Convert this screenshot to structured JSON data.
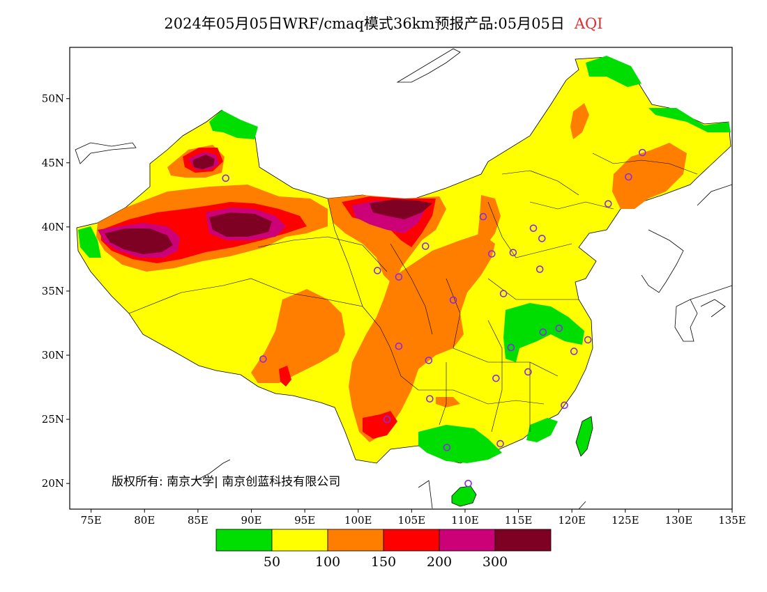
{
  "header": {
    "title_main": "2024年05月05日WRF/cmaq模式36km预报产品:05月05日",
    "title_variable": "AQI"
  },
  "map": {
    "lon_range": [
      73,
      135
    ],
    "lat_range": [
      18,
      54
    ],
    "x_ticks": [
      {
        "lon": 75,
        "label": "75E"
      },
      {
        "lon": 80,
        "label": "80E"
      },
      {
        "lon": 85,
        "label": "85E"
      },
      {
        "lon": 90,
        "label": "90E"
      },
      {
        "lon": 95,
        "label": "95E"
      },
      {
        "lon": 100,
        "label": "100E"
      },
      {
        "lon": 105,
        "label": "105E"
      },
      {
        "lon": 110,
        "label": "110E"
      },
      {
        "lon": 115,
        "label": "115E"
      },
      {
        "lon": 120,
        "label": "120E"
      },
      {
        "lon": 125,
        "label": "125E"
      },
      {
        "lon": 130,
        "label": "130E"
      },
      {
        "lon": 135,
        "label": "135E"
      }
    ],
    "y_ticks": [
      {
        "lat": 20,
        "label": "20N"
      },
      {
        "lat": 25,
        "label": "25N"
      },
      {
        "lat": 30,
        "label": "30N"
      },
      {
        "lat": 35,
        "label": "35N"
      },
      {
        "lat": 40,
        "label": "40N"
      },
      {
        "lat": 45,
        "label": "45N"
      },
      {
        "lat": 50,
        "label": "50N"
      }
    ],
    "copyright": "版权所有: 南京大学| 南京创蓝科技有限公司",
    "station_color": "#8a2be2",
    "stations": [
      [
        87.6,
        43.8
      ],
      [
        91.1,
        29.7
      ],
      [
        101.8,
        36.6
      ],
      [
        103.8,
        36.1
      ],
      [
        103.8,
        30.7
      ],
      [
        102.7,
        25.0
      ],
      [
        106.3,
        38.5
      ],
      [
        106.6,
        29.6
      ],
      [
        106.7,
        26.6
      ],
      [
        108.9,
        34.3
      ],
      [
        108.3,
        22.8
      ],
      [
        110.3,
        20.0
      ],
      [
        111.7,
        40.8
      ],
      [
        112.5,
        37.9
      ],
      [
        114.5,
        38.0
      ],
      [
        116.4,
        39.9
      ],
      [
        117.2,
        39.1
      ],
      [
        117.0,
        36.7
      ],
      [
        113.6,
        34.8
      ],
      [
        114.3,
        30.6
      ],
      [
        112.9,
        28.2
      ],
      [
        115.9,
        28.7
      ],
      [
        113.3,
        23.1
      ],
      [
        117.3,
        31.8
      ],
      [
        118.8,
        32.1
      ],
      [
        120.2,
        30.3
      ],
      [
        121.5,
        31.2
      ],
      [
        119.3,
        26.1
      ],
      [
        123.4,
        41.8
      ],
      [
        125.3,
        43.9
      ],
      [
        126.6,
        45.8
      ]
    ]
  },
  "legend": {
    "colors": [
      "#00dd00",
      "#ffff00",
      "#ff7e00",
      "#ff0000",
      "#cc0077",
      "#7e0023"
    ],
    "labels": [
      "50",
      "100",
      "150",
      "200",
      "300"
    ]
  }
}
